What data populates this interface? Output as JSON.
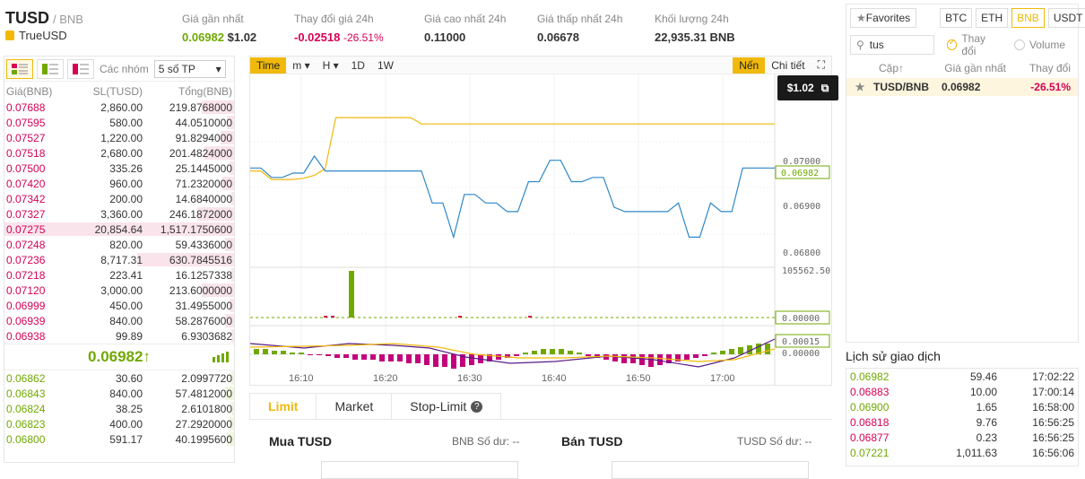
{
  "header": {
    "pair": "TUSD",
    "quote": "/ BNB",
    "name": "TrueUSD",
    "stats": [
      {
        "label": "Giá gần nhất",
        "value": "0.06982",
        "value2": "$1.02"
      },
      {
        "label": "Thay đổi giá 24h",
        "value": "-0.02518",
        "value2": "-26.51%"
      },
      {
        "label": "Giá cao nhất 24h",
        "value": "0.11000"
      },
      {
        "label": "Giá thấp nhất 24h",
        "value": "0.06678"
      },
      {
        "label": "Khối lượng 24h",
        "value": "22,935.31 BNB"
      }
    ]
  },
  "orderbook": {
    "groups_label": "Các nhóm",
    "groups_value": "5 số TP",
    "columns": [
      "Giá(BNB)",
      "SL(TUSD)",
      "Tổng(BNB)"
    ],
    "asks": [
      [
        "0.07688",
        "2,860.00",
        "219.8768000",
        0.14
      ],
      [
        "0.07595",
        "580.00",
        "44.0510000",
        0.03
      ],
      [
        "0.07527",
        "1,220.00",
        "91.8294000",
        0.06
      ],
      [
        "0.07518",
        "2,680.00",
        "201.4824000",
        0.13
      ],
      [
        "0.07500",
        "335.26",
        "25.1445000",
        0.02
      ],
      [
        "0.07420",
        "960.00",
        "71.2320000",
        0.05
      ],
      [
        "0.07342",
        "200.00",
        "14.6840000",
        0.01
      ],
      [
        "0.07327",
        "3,360.00",
        "246.1872000",
        0.16
      ],
      [
        "0.07275",
        "20,854.64",
        "1,517.1750600",
        1.0
      ],
      [
        "0.07248",
        "820.00",
        "59.4336000",
        0.04
      ],
      [
        "0.07236",
        "8,717.31",
        "630.7845516",
        0.42
      ],
      [
        "0.07218",
        "223.41",
        "16.1257338",
        0.01
      ],
      [
        "0.07120",
        "3,000.00",
        "213.6000000",
        0.14
      ],
      [
        "0.06999",
        "450.00",
        "31.4955000",
        0.02
      ],
      [
        "0.06939",
        "840.00",
        "58.2876000",
        0.04
      ],
      [
        "0.06938",
        "99.89",
        "6.9303682",
        0.01
      ]
    ],
    "last_price": "0.06982↑",
    "bids": [
      [
        "0.06862",
        "30.60",
        "2.0997720",
        0.01
      ],
      [
        "0.06843",
        "840.00",
        "57.4812000",
        0.04
      ],
      [
        "0.06824",
        "38.25",
        "2.6101800",
        0.01
      ],
      [
        "0.06823",
        "400.00",
        "27.2920000",
        0.02
      ],
      [
        "0.06800",
        "591.17",
        "40.1995600",
        0.03
      ]
    ]
  },
  "chart": {
    "toolbar": [
      "Time",
      "m ▾",
      "H ▾",
      "1D",
      "1W"
    ],
    "right_tools": [
      "Nến",
      "Chi tiết"
    ],
    "tooltip": "$1.02",
    "price_labels": [
      "0.07000",
      "0.06982",
      "0.06900",
      "0.06800"
    ],
    "vol_labels": [
      "105562.50",
      "0.00000"
    ],
    "macd_labels": [
      "0.00015",
      "0.00000"
    ],
    "time_labels": [
      "16:10",
      "16:20",
      "16:30",
      "16:40",
      "16:50",
      "17:00"
    ],
    "price_series": [
      0.06982,
      0.06982,
      0.0696,
      0.0696,
      0.0697,
      0.0697,
      0.0701,
      0.06975,
      0.06975,
      0.06975,
      0.06975,
      0.06975,
      0.06975,
      0.06975,
      0.06975,
      0.06975,
      0.06975,
      0.069,
      0.069,
      0.0682,
      0.0692,
      0.0692,
      0.069,
      0.069,
      0.0688,
      0.0688,
      0.0695,
      0.0695,
      0.07,
      0.07,
      0.0695,
      0.0695,
      0.0696,
      0.0696,
      0.0689,
      0.0688,
      0.0688,
      0.0688,
      0.0688,
      0.0688,
      0.069,
      0.0682,
      0.0682,
      0.069,
      0.0688,
      0.0688,
      0.06982,
      0.06982,
      0.06982,
      0.06982
    ],
    "ma_series": [
      0.06975,
      0.06975,
      0.06955,
      0.06955,
      0.06955,
      0.06958,
      0.06965,
      0.0698,
      0.071,
      0.071,
      0.071,
      0.071,
      0.071,
      0.071,
      0.071,
      0.071,
      0.07085,
      0.07085,
      0.07085,
      0.07085,
      0.07085,
      0.07085,
      0.07085,
      0.07085,
      0.07085,
      0.07085,
      0.07085,
      0.07085,
      0.07085,
      0.07085,
      0.07085,
      0.07085,
      0.07085,
      0.07085,
      0.07085,
      0.07085,
      0.07085,
      0.07085,
      0.07085,
      0.07085,
      0.07085,
      0.07085,
      0.07085,
      0.07085,
      0.07085,
      0.07085,
      0.07085,
      0.07085,
      0.07085,
      0.07085
    ]
  },
  "order_form": {
    "tabs": [
      "Limit",
      "Market",
      "Stop-Limit"
    ],
    "buy_title": "Mua TUSD",
    "buy_balance": "BNB Số dư: --",
    "sell_title": "Bán TUSD",
    "sell_balance": "TUSD Số dư: --"
  },
  "markets": {
    "favorites": "Favorites",
    "tabs": [
      "BTC",
      "ETH",
      "BNB",
      "USDT"
    ],
    "search_value": "tus",
    "radio_change": "Thay đổi",
    "radio_volume": "Volume",
    "columns": [
      "Cặp↑",
      "Giá gần nhất",
      "Thay đổi"
    ],
    "rows": [
      {
        "pair": "TUSD/BNB",
        "price": "0.06982",
        "change": "-26.51%"
      }
    ]
  },
  "trade_history": {
    "title": "Lịch sử giao dịch",
    "rows": [
      [
        "0.06982",
        "59.46",
        "17:02:22",
        "buy"
      ],
      [
        "0.06883",
        "10.00",
        "17:00:14",
        "sell"
      ],
      [
        "0.06900",
        "1.65",
        "16:58:00",
        "buy"
      ],
      [
        "0.06818",
        "9.76",
        "16:56:25",
        "sell"
      ],
      [
        "0.06877",
        "0.23",
        "16:56:25",
        "sell"
      ],
      [
        "0.07221",
        "1,011.63",
        "16:56:06",
        "buy"
      ]
    ]
  },
  "colors": {
    "up": "#70a800",
    "down": "#d60055",
    "accent": "#f0b90b",
    "line": "#2f88c8"
  }
}
